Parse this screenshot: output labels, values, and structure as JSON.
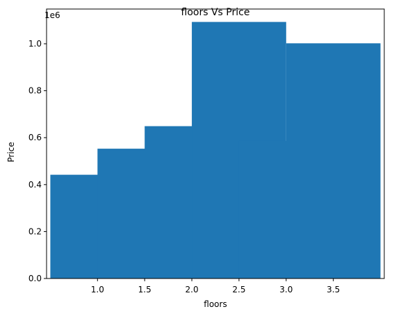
{
  "chart_data": {
    "type": "bar",
    "title": "floors Vs Price",
    "xlabel": "floors",
    "ylabel": "Price",
    "y_offset_label": "1e6",
    "bar_color": "#1f77b4",
    "bar_width": 1,
    "x": [
      1.0,
      1.5,
      2.0,
      2.5,
      3.0,
      3.5
    ],
    "values": [
      442000,
      553000,
      649000,
      1093000,
      586000,
      1002000
    ],
    "xlim": [
      0.46,
      4.04
    ],
    "ylim": [
      0,
      1148000
    ],
    "x_ticks": [
      1.0,
      1.5,
      2.0,
      2.5,
      3.0,
      3.5
    ],
    "x_tick_labels": [
      "1.0",
      "1.5",
      "2.0",
      "2.5",
      "3.0",
      "3.5"
    ],
    "y_ticks": [
      0,
      200000,
      400000,
      600000,
      800000,
      1000000
    ],
    "y_tick_labels": [
      "0.0",
      "0.2",
      "0.4",
      "0.6",
      "0.8",
      "1.0"
    ],
    "grid": false,
    "legend": false
  }
}
